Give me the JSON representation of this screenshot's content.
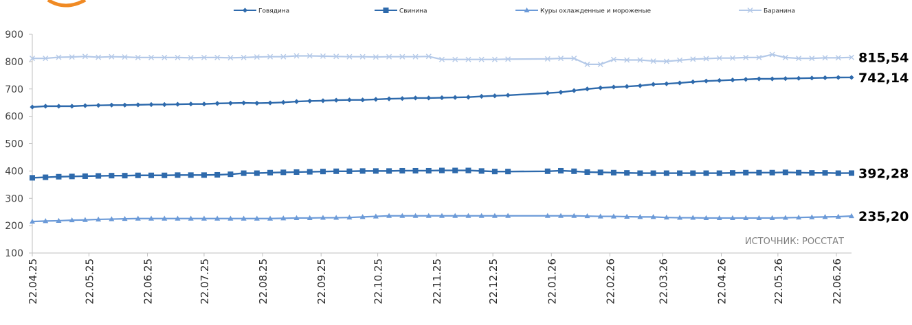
{
  "chart_data": {
    "type": "line",
    "source_note": "ИСТОЧНИК: РОССТАТ",
    "ylim": [
      100,
      900
    ],
    "yticks": [
      100,
      200,
      300,
      400,
      500,
      600,
      700,
      800,
      900
    ],
    "x_tick_labels": [
      "22.04.25",
      "22.05.25",
      "22.06.25",
      "22.07.25",
      "22.08.25",
      "22.09.25",
      "22.10.25",
      "22.11.25",
      "22.12.25",
      "22.01.26",
      "22.02.26",
      "22.03.26",
      "22.04.26",
      "22.05.26",
      "22.06.26"
    ],
    "grid": false,
    "legend_position": "top",
    "series": [
      {
        "name": "Говядина",
        "color": "#2e6aac",
        "marker": "diamond",
        "last_label": "742,14",
        "points": [
          [
            "22.04.25",
            634
          ],
          [
            "29.04.25",
            637
          ],
          [
            "06.05.25",
            637
          ],
          [
            "13.05.25",
            637
          ],
          [
            "20.05.25",
            639
          ],
          [
            "27.05.25",
            640
          ],
          [
            "03.06.25",
            641
          ],
          [
            "10.06.25",
            641
          ],
          [
            "17.06.25",
            642
          ],
          [
            "24.06.25",
            643
          ],
          [
            "01.07.25",
            643
          ],
          [
            "08.07.25",
            644
          ],
          [
            "15.07.25",
            645
          ],
          [
            "22.07.25",
            645
          ],
          [
            "29.07.25",
            647
          ],
          [
            "05.08.25",
            648
          ],
          [
            "12.08.25",
            649
          ],
          [
            "19.08.25",
            648
          ],
          [
            "26.08.25",
            649
          ],
          [
            "02.09.25",
            651
          ],
          [
            "09.09.25",
            654
          ],
          [
            "16.09.25",
            656
          ],
          [
            "23.09.25",
            657
          ],
          [
            "30.09.25",
            659
          ],
          [
            "07.10.25",
            660
          ],
          [
            "14.10.25",
            660
          ],
          [
            "21.10.25",
            662
          ],
          [
            "28.10.25",
            664
          ],
          [
            "04.11.25",
            665
          ],
          [
            "11.11.25",
            667
          ],
          [
            "18.11.25",
            667
          ],
          [
            "25.11.25",
            668
          ],
          [
            "02.12.25",
            669
          ],
          [
            "09.12.25",
            670
          ],
          [
            "16.12.25",
            673
          ],
          [
            "23.12.25",
            675
          ],
          [
            "30.12.25",
            677
          ],
          [
            "20.01.26",
            685
          ],
          [
            "27.01.26",
            688
          ],
          [
            "03.02.26",
            694
          ],
          [
            "10.02.26",
            700
          ],
          [
            "17.02.26",
            704
          ],
          [
            "24.02.26",
            707
          ],
          [
            "03.03.26",
            709
          ],
          [
            "10.03.26",
            712
          ],
          [
            "17.03.26",
            717
          ],
          [
            "24.03.26",
            719
          ],
          [
            "31.03.26",
            722
          ],
          [
            "07.04.26",
            726
          ],
          [
            "14.04.26",
            729
          ],
          [
            "21.04.26",
            731
          ],
          [
            "28.04.26",
            733
          ],
          [
            "05.05.26",
            735
          ],
          [
            "12.05.26",
            737
          ],
          [
            "19.05.26",
            737
          ],
          [
            "26.05.26",
            738
          ],
          [
            "02.06.26",
            739
          ],
          [
            "09.06.26",
            740
          ],
          [
            "16.06.26",
            741
          ],
          [
            "23.06.26",
            742
          ],
          [
            "30.06.26",
            742.14
          ]
        ]
      },
      {
        "name": "Свинина",
        "color": "#2e6aac",
        "marker": "square",
        "last_label": "392,28",
        "points": [
          [
            "22.04.25",
            375
          ],
          [
            "29.04.25",
            377
          ],
          [
            "06.05.25",
            379
          ],
          [
            "13.05.25",
            380
          ],
          [
            "20.05.25",
            381
          ],
          [
            "27.05.25",
            382
          ],
          [
            "03.06.25",
            383
          ],
          [
            "10.06.25",
            383
          ],
          [
            "17.06.25",
            384
          ],
          [
            "24.06.25",
            384
          ],
          [
            "01.07.25",
            384
          ],
          [
            "08.07.25",
            385
          ],
          [
            "15.07.25",
            385
          ],
          [
            "22.07.25",
            385
          ],
          [
            "29.07.25",
            386
          ],
          [
            "05.08.25",
            388
          ],
          [
            "12.08.25",
            392
          ],
          [
            "19.08.25",
            392
          ],
          [
            "26.08.25",
            394
          ],
          [
            "02.09.25",
            395
          ],
          [
            "09.09.25",
            396
          ],
          [
            "16.09.25",
            397
          ],
          [
            "23.09.25",
            398
          ],
          [
            "30.09.25",
            399
          ],
          [
            "07.10.25",
            399
          ],
          [
            "14.10.25",
            400
          ],
          [
            "21.10.25",
            400
          ],
          [
            "28.10.25",
            400
          ],
          [
            "04.11.25",
            401
          ],
          [
            "11.11.25",
            401
          ],
          [
            "18.11.25",
            401
          ],
          [
            "25.11.25",
            402
          ],
          [
            "02.12.25",
            402
          ],
          [
            "09.12.25",
            402
          ],
          [
            "16.12.25",
            400
          ],
          [
            "23.12.25",
            398
          ],
          [
            "30.12.25",
            398
          ],
          [
            "20.01.26",
            399
          ],
          [
            "27.01.26",
            401
          ],
          [
            "03.02.26",
            399
          ],
          [
            "10.02.26",
            396
          ],
          [
            "17.02.26",
            395
          ],
          [
            "24.02.26",
            394
          ],
          [
            "03.03.26",
            393
          ],
          [
            "10.03.26",
            392
          ],
          [
            "17.03.26",
            392
          ],
          [
            "24.03.26",
            392
          ],
          [
            "31.03.26",
            392
          ],
          [
            "07.04.26",
            392
          ],
          [
            "14.04.26",
            392
          ],
          [
            "21.04.26",
            392
          ],
          [
            "28.04.26",
            393
          ],
          [
            "05.05.26",
            394
          ],
          [
            "12.05.26",
            394
          ],
          [
            "19.05.26",
            394
          ],
          [
            "26.05.26",
            395
          ],
          [
            "02.06.26",
            394
          ],
          [
            "09.06.26",
            393
          ],
          [
            "16.06.26",
            393
          ],
          [
            "23.06.26",
            392
          ],
          [
            "30.06.26",
            392.28
          ]
        ]
      },
      {
        "name": "Куры охлажденные и мороженые",
        "color": "#6b9ad8",
        "marker": "triangle",
        "last_label": "235,20",
        "points": [
          [
            "22.04.25",
            215
          ],
          [
            "29.04.25",
            217
          ],
          [
            "06.05.25",
            218
          ],
          [
            "13.05.25",
            220
          ],
          [
            "20.05.25",
            221
          ],
          [
            "27.05.25",
            223
          ],
          [
            "03.06.25",
            224
          ],
          [
            "10.06.25",
            225
          ],
          [
            "17.06.25",
            226
          ],
          [
            "24.06.25",
            226
          ],
          [
            "01.07.25",
            226
          ],
          [
            "08.07.25",
            226
          ],
          [
            "15.07.25",
            226
          ],
          [
            "22.07.25",
            226
          ],
          [
            "29.07.25",
            226
          ],
          [
            "05.08.25",
            226
          ],
          [
            "12.08.25",
            226
          ],
          [
            "19.08.25",
            226
          ],
          [
            "26.08.25",
            226
          ],
          [
            "02.09.25",
            227
          ],
          [
            "09.09.25",
            228
          ],
          [
            "16.09.25",
            228
          ],
          [
            "23.09.25",
            229
          ],
          [
            "30.09.25",
            229
          ],
          [
            "07.10.25",
            230
          ],
          [
            "14.10.25",
            232
          ],
          [
            "21.10.25",
            234
          ],
          [
            "28.10.25",
            236
          ],
          [
            "04.11.25",
            236
          ],
          [
            "11.11.25",
            236
          ],
          [
            "18.11.25",
            236
          ],
          [
            "25.11.25",
            236
          ],
          [
            "02.12.25",
            236
          ],
          [
            "09.12.25",
            236
          ],
          [
            "16.12.25",
            236
          ],
          [
            "23.12.25",
            236
          ],
          [
            "30.12.25",
            236
          ],
          [
            "20.01.26",
            236
          ],
          [
            "27.01.26",
            236
          ],
          [
            "03.02.26",
            236
          ],
          [
            "10.02.26",
            235
          ],
          [
            "17.02.26",
            234
          ],
          [
            "24.02.26",
            234
          ],
          [
            "03.03.26",
            233
          ],
          [
            "10.03.26",
            232
          ],
          [
            "17.03.26",
            232
          ],
          [
            "24.03.26",
            230
          ],
          [
            "31.03.26",
            229
          ],
          [
            "07.04.26",
            229
          ],
          [
            "14.04.26",
            228
          ],
          [
            "21.04.26",
            228
          ],
          [
            "28.04.26",
            228
          ],
          [
            "05.05.26",
            228
          ],
          [
            "12.05.26",
            228
          ],
          [
            "19.05.26",
            228
          ],
          [
            "26.05.26",
            229
          ],
          [
            "02.06.26",
            230
          ],
          [
            "09.06.26",
            231
          ],
          [
            "16.06.26",
            232
          ],
          [
            "23.06.26",
            233
          ],
          [
            "30.06.26",
            235.2
          ]
        ]
      },
      {
        "name": "Баранина",
        "color": "#b4c9e8",
        "marker": "cross",
        "last_label": "815,54",
        "points": [
          [
            "22.04.25",
            812
          ],
          [
            "29.04.25",
            812
          ],
          [
            "06.05.25",
            816
          ],
          [
            "13.05.25",
            817
          ],
          [
            "20.05.25",
            819
          ],
          [
            "27.05.25",
            816
          ],
          [
            "03.06.25",
            818
          ],
          [
            "10.06.25",
            817
          ],
          [
            "17.06.25",
            815
          ],
          [
            "24.06.25",
            815
          ],
          [
            "01.07.25",
            815
          ],
          [
            "08.07.25",
            815
          ],
          [
            "15.07.25",
            814
          ],
          [
            "22.07.25",
            815
          ],
          [
            "29.07.25",
            815
          ],
          [
            "05.08.25",
            814
          ],
          [
            "12.08.25",
            815
          ],
          [
            "19.08.25",
            817
          ],
          [
            "26.08.25",
            818
          ],
          [
            "02.09.25",
            818
          ],
          [
            "09.09.25",
            821
          ],
          [
            "16.09.25",
            821
          ],
          [
            "23.09.25",
            820
          ],
          [
            "30.09.25",
            819
          ],
          [
            "07.10.25",
            818
          ],
          [
            "14.10.25",
            818
          ],
          [
            "21.10.25",
            817
          ],
          [
            "28.10.25",
            818
          ],
          [
            "04.11.25",
            818
          ],
          [
            "11.11.25",
            818
          ],
          [
            "18.11.25",
            819
          ],
          [
            "25.11.25",
            808
          ],
          [
            "02.12.25",
            808
          ],
          [
            "09.12.25",
            808
          ],
          [
            "16.12.25",
            808
          ],
          [
            "23.12.25",
            808
          ],
          [
            "30.12.25",
            809
          ],
          [
            "20.01.26",
            810
          ],
          [
            "27.01.26",
            812
          ],
          [
            "03.02.26",
            812
          ],
          [
            "10.02.26",
            790
          ],
          [
            "17.02.26",
            790
          ],
          [
            "24.02.26",
            808
          ],
          [
            "03.03.26",
            806
          ],
          [
            "10.03.26",
            806
          ],
          [
            "17.03.26",
            802
          ],
          [
            "24.03.26",
            801
          ],
          [
            "31.03.26",
            805
          ],
          [
            "07.04.26",
            809
          ],
          [
            "14.04.26",
            811
          ],
          [
            "21.04.26",
            813
          ],
          [
            "28.04.26",
            813
          ],
          [
            "05.05.26",
            815
          ],
          [
            "12.05.26",
            815
          ],
          [
            "19.05.26",
            826
          ],
          [
            "26.05.26",
            815
          ],
          [
            "02.06.26",
            812
          ],
          [
            "09.06.26",
            812
          ],
          [
            "16.06.26",
            814
          ],
          [
            "23.06.26",
            814
          ],
          [
            "30.06.26",
            815.54
          ]
        ]
      }
    ]
  }
}
